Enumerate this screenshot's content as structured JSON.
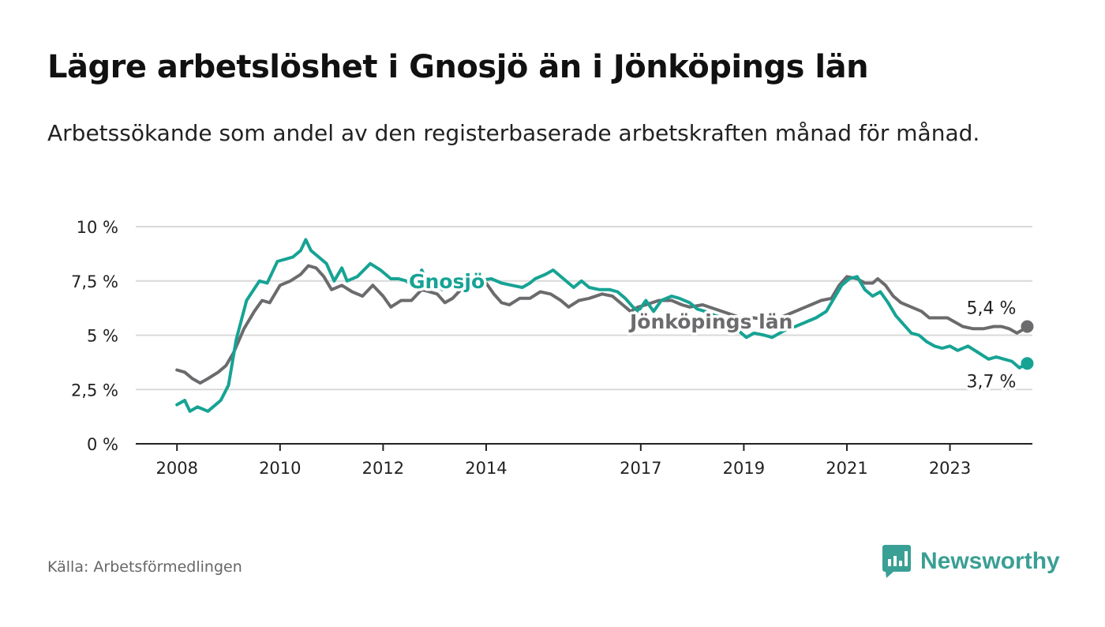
{
  "header": {
    "title": "Lägre arbetslöshet i Gnosjö än i Jönköpings län",
    "subtitle": "Arbetssökande som andel av den registerbaserade arbetskraften månad för månad."
  },
  "footer": {
    "source": "Källa: Arbetsförmedlingen",
    "brand": "Newsworthy"
  },
  "colors": {
    "gnosjo": "#16a394",
    "lan": "#6b6b6e",
    "grid": "#d9d9d9",
    "axis": "#222222",
    "brand": "#3a9f94"
  },
  "chart_data": {
    "type": "line",
    "title": "Lägre arbetslöshet i Gnosjö än i Jönköpings län",
    "xlabel": "",
    "ylabel": "",
    "xlim": [
      2007.2,
      2024.6
    ],
    "ylim": [
      0,
      10
    ],
    "y_ticks": [
      0,
      2.5,
      5,
      7.5,
      10
    ],
    "y_tick_labels": [
      "0 %",
      "2,5 %",
      "5 %",
      "7,5 %",
      "10 %"
    ],
    "x_ticks": [
      2008,
      2010,
      2012,
      2014,
      2017,
      2019,
      2021,
      2023
    ],
    "x_tick_labels": [
      "2008",
      "2010",
      "2012",
      "2014",
      "2017",
      "2019",
      "2021",
      "2023"
    ],
    "series": [
      {
        "name": "Gnosjö",
        "label": "Gnosjö",
        "color": "#16a394",
        "end_label": "3,7 %",
        "points": [
          [
            2008.0,
            1.8
          ],
          [
            2008.15,
            2.0
          ],
          [
            2008.25,
            1.5
          ],
          [
            2008.4,
            1.7
          ],
          [
            2008.6,
            1.5
          ],
          [
            2008.85,
            2.0
          ],
          [
            2009.0,
            2.7
          ],
          [
            2009.15,
            4.8
          ],
          [
            2009.35,
            6.6
          ],
          [
            2009.6,
            7.5
          ],
          [
            2009.75,
            7.4
          ],
          [
            2009.95,
            8.4
          ],
          [
            2010.1,
            8.5
          ],
          [
            2010.25,
            8.6
          ],
          [
            2010.4,
            8.9
          ],
          [
            2010.5,
            9.4
          ],
          [
            2010.6,
            8.9
          ],
          [
            2010.75,
            8.6
          ],
          [
            2010.9,
            8.3
          ],
          [
            2011.05,
            7.5
          ],
          [
            2011.2,
            8.1
          ],
          [
            2011.3,
            7.5
          ],
          [
            2011.5,
            7.7
          ],
          [
            2011.75,
            8.3
          ],
          [
            2011.95,
            8.0
          ],
          [
            2012.15,
            7.6
          ],
          [
            2012.3,
            7.6
          ],
          [
            2012.45,
            7.5
          ],
          [
            2012.6,
            7.2
          ],
          [
            2012.75,
            8.0
          ],
          [
            2012.85,
            7.5
          ],
          [
            2013.0,
            7.4
          ],
          [
            2013.15,
            7.1
          ],
          [
            2013.3,
            7.2
          ],
          [
            2013.5,
            7.5
          ],
          [
            2013.8,
            7.5
          ],
          [
            2014.1,
            7.6
          ],
          [
            2014.3,
            7.4
          ],
          [
            2014.5,
            7.3
          ],
          [
            2014.7,
            7.2
          ],
          [
            2014.85,
            7.4
          ],
          [
            2014.95,
            7.6
          ],
          [
            2015.15,
            7.8
          ],
          [
            2015.3,
            8.0
          ],
          [
            2015.5,
            7.6
          ],
          [
            2015.7,
            7.2
          ],
          [
            2015.85,
            7.5
          ],
          [
            2016.0,
            7.2
          ],
          [
            2016.2,
            7.1
          ],
          [
            2016.4,
            7.1
          ],
          [
            2016.55,
            7.0
          ],
          [
            2016.7,
            6.7
          ],
          [
            2016.85,
            6.3
          ],
          [
            2016.95,
            6.1
          ],
          [
            2017.1,
            6.6
          ],
          [
            2017.25,
            6.1
          ],
          [
            2017.4,
            6.6
          ],
          [
            2017.6,
            6.8
          ],
          [
            2017.75,
            6.7
          ],
          [
            2017.95,
            6.5
          ],
          [
            2018.1,
            6.2
          ],
          [
            2018.25,
            6.1
          ],
          [
            2018.45,
            5.9
          ],
          [
            2018.6,
            5.8
          ],
          [
            2018.75,
            5.5
          ],
          [
            2018.9,
            5.2
          ],
          [
            2019.05,
            4.9
          ],
          [
            2019.2,
            5.1
          ],
          [
            2019.4,
            5.0
          ],
          [
            2019.55,
            4.9
          ],
          [
            2019.7,
            5.1
          ],
          [
            2019.85,
            5.3
          ],
          [
            2020.0,
            5.4
          ],
          [
            2020.2,
            5.6
          ],
          [
            2020.4,
            5.8
          ],
          [
            2020.6,
            6.1
          ],
          [
            2020.75,
            6.7
          ],
          [
            2020.9,
            7.3
          ],
          [
            2021.05,
            7.6
          ],
          [
            2021.2,
            7.7
          ],
          [
            2021.35,
            7.1
          ],
          [
            2021.5,
            6.8
          ],
          [
            2021.65,
            7.0
          ],
          [
            2021.8,
            6.5
          ],
          [
            2021.95,
            5.9
          ],
          [
            2022.1,
            5.5
          ],
          [
            2022.25,
            5.1
          ],
          [
            2022.4,
            5.0
          ],
          [
            2022.55,
            4.7
          ],
          [
            2022.7,
            4.5
          ],
          [
            2022.85,
            4.4
          ],
          [
            2023.0,
            4.5
          ],
          [
            2023.15,
            4.3
          ],
          [
            2023.35,
            4.5
          ],
          [
            2023.55,
            4.2
          ],
          [
            2023.75,
            3.9
          ],
          [
            2023.9,
            4.0
          ],
          [
            2024.05,
            3.9
          ],
          [
            2024.2,
            3.8
          ],
          [
            2024.35,
            3.5
          ],
          [
            2024.5,
            3.7
          ]
        ]
      },
      {
        "name": "Jönköpings län",
        "label": "Jönköpings län",
        "color": "#6b6b6e",
        "end_label": "5,4 %",
        "points": [
          [
            2008.0,
            3.4
          ],
          [
            2008.15,
            3.3
          ],
          [
            2008.3,
            3.0
          ],
          [
            2008.45,
            2.8
          ],
          [
            2008.6,
            3.0
          ],
          [
            2008.8,
            3.3
          ],
          [
            2008.95,
            3.6
          ],
          [
            2009.1,
            4.2
          ],
          [
            2009.3,
            5.3
          ],
          [
            2009.5,
            6.1
          ],
          [
            2009.65,
            6.6
          ],
          [
            2009.8,
            6.5
          ],
          [
            2010.0,
            7.3
          ],
          [
            2010.2,
            7.5
          ],
          [
            2010.4,
            7.8
          ],
          [
            2010.55,
            8.2
          ],
          [
            2010.7,
            8.1
          ],
          [
            2010.85,
            7.7
          ],
          [
            2011.0,
            7.1
          ],
          [
            2011.2,
            7.3
          ],
          [
            2011.4,
            7.0
          ],
          [
            2011.6,
            6.8
          ],
          [
            2011.8,
            7.3
          ],
          [
            2012.0,
            6.8
          ],
          [
            2012.15,
            6.3
          ],
          [
            2012.35,
            6.6
          ],
          [
            2012.55,
            6.6
          ],
          [
            2012.75,
            7.1
          ],
          [
            2012.9,
            7.0
          ],
          [
            2013.05,
            6.9
          ],
          [
            2013.2,
            6.5
          ],
          [
            2013.35,
            6.7
          ],
          [
            2013.55,
            7.2
          ],
          [
            2013.8,
            7.5
          ],
          [
            2014.0,
            7.4
          ],
          [
            2014.15,
            6.9
          ],
          [
            2014.3,
            6.5
          ],
          [
            2014.45,
            6.4
          ],
          [
            2014.65,
            6.7
          ],
          [
            2014.85,
            6.7
          ],
          [
            2015.05,
            7.0
          ],
          [
            2015.25,
            6.9
          ],
          [
            2015.45,
            6.6
          ],
          [
            2015.6,
            6.3
          ],
          [
            2015.8,
            6.6
          ],
          [
            2016.0,
            6.7
          ],
          [
            2016.25,
            6.9
          ],
          [
            2016.45,
            6.8
          ],
          [
            2016.65,
            6.4
          ],
          [
            2016.8,
            6.1
          ],
          [
            2016.95,
            6.3
          ],
          [
            2017.1,
            6.4
          ],
          [
            2017.35,
            6.6
          ],
          [
            2017.6,
            6.6
          ],
          [
            2017.8,
            6.4
          ],
          [
            2017.95,
            6.3
          ],
          [
            2018.2,
            6.4
          ],
          [
            2018.45,
            6.2
          ],
          [
            2018.7,
            6.0
          ],
          [
            2018.95,
            5.8
          ],
          [
            2019.2,
            5.8
          ],
          [
            2019.45,
            5.7
          ],
          [
            2019.7,
            5.8
          ],
          [
            2019.9,
            6.0
          ],
          [
            2020.1,
            6.2
          ],
          [
            2020.3,
            6.4
          ],
          [
            2020.5,
            6.6
          ],
          [
            2020.7,
            6.7
          ],
          [
            2020.85,
            7.3
          ],
          [
            2021.0,
            7.7
          ],
          [
            2021.2,
            7.6
          ],
          [
            2021.35,
            7.4
          ],
          [
            2021.5,
            7.4
          ],
          [
            2021.6,
            7.6
          ],
          [
            2021.75,
            7.3
          ],
          [
            2021.9,
            6.8
          ],
          [
            2022.05,
            6.5
          ],
          [
            2022.25,
            6.3
          ],
          [
            2022.45,
            6.1
          ],
          [
            2022.6,
            5.8
          ],
          [
            2022.75,
            5.8
          ],
          [
            2022.95,
            5.8
          ],
          [
            2023.1,
            5.6
          ],
          [
            2023.25,
            5.4
          ],
          [
            2023.45,
            5.3
          ],
          [
            2023.65,
            5.3
          ],
          [
            2023.85,
            5.4
          ],
          [
            2024.0,
            5.4
          ],
          [
            2024.15,
            5.3
          ],
          [
            2024.3,
            5.1
          ],
          [
            2024.45,
            5.3
          ],
          [
            2024.5,
            5.4
          ]
        ]
      }
    ]
  }
}
